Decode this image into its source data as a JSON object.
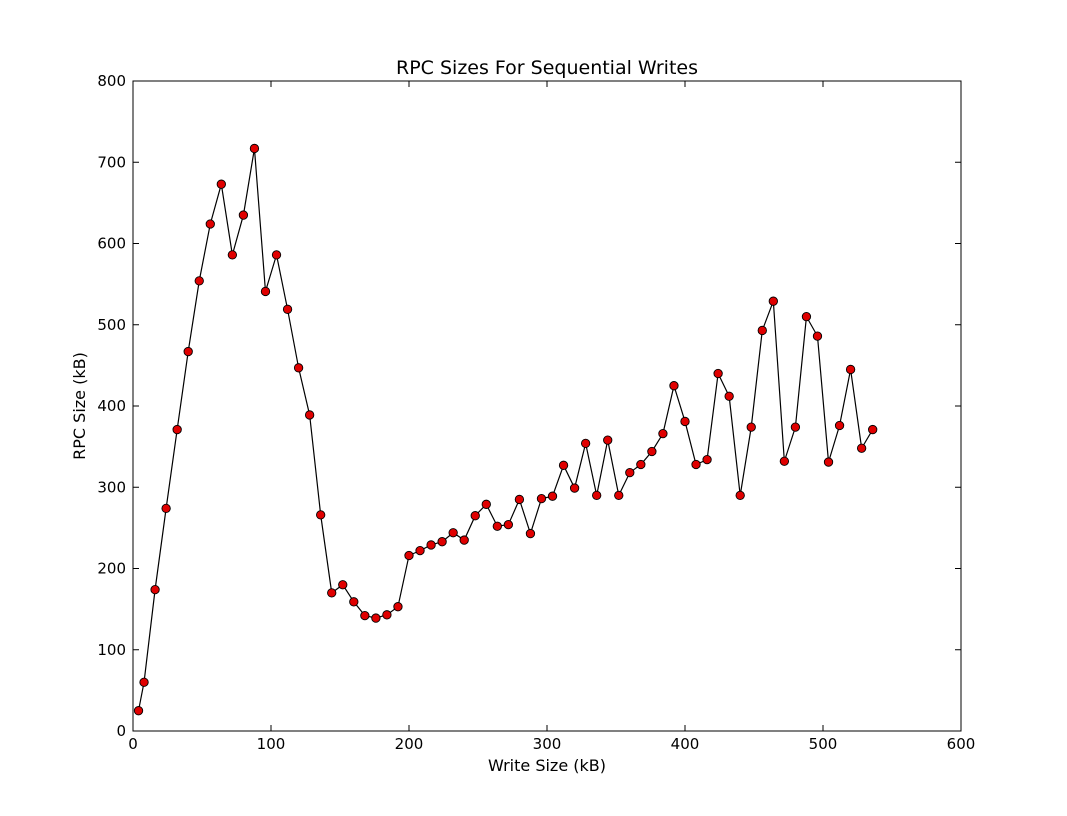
{
  "chart_data": {
    "type": "line",
    "title": "RPC Sizes For Sequential Writes",
    "xlabel": "Write Size (kB)",
    "ylabel": "RPC Size (kB)",
    "xlim": [
      0,
      600
    ],
    "ylim": [
      0,
      800
    ],
    "xticks": [
      0,
      100,
      200,
      300,
      400,
      500,
      600
    ],
    "yticks": [
      0,
      100,
      200,
      300,
      400,
      500,
      600,
      700,
      800
    ],
    "grid": false,
    "line_color": "#000000",
    "marker_color": "#e00000",
    "marker": "circle",
    "series": [
      {
        "x": [
          4,
          8,
          16,
          24,
          32,
          40,
          48,
          56,
          64,
          72,
          80,
          88,
          96,
          104,
          112,
          120,
          128,
          136,
          144,
          152,
          160,
          168,
          176,
          184,
          192,
          200,
          208,
          216,
          224,
          232,
          240,
          248,
          256,
          264,
          272,
          280,
          288,
          296,
          304,
          312,
          320,
          328,
          336,
          344,
          352,
          360,
          368,
          376,
          384,
          392,
          400,
          408,
          416,
          424,
          432,
          440,
          448,
          456,
          464,
          472,
          480,
          488,
          496,
          504,
          512,
          520,
          528,
          536
        ],
        "y": [
          25,
          60,
          174,
          274,
          371,
          467,
          554,
          624,
          673,
          586,
          635,
          717,
          541,
          586,
          519,
          447,
          389,
          266,
          170,
          180,
          159,
          142,
          139,
          143,
          153,
          216,
          222,
          229,
          233,
          244,
          235,
          265,
          279,
          252,
          254,
          285,
          243,
          286,
          289,
          327,
          299,
          354,
          290,
          358,
          290,
          318,
          328,
          344,
          366,
          425,
          381,
          328,
          334,
          440,
          412,
          290,
          374,
          493,
          529,
          332,
          374,
          510,
          486,
          331,
          376,
          445,
          348,
          371
        ]
      }
    ]
  }
}
